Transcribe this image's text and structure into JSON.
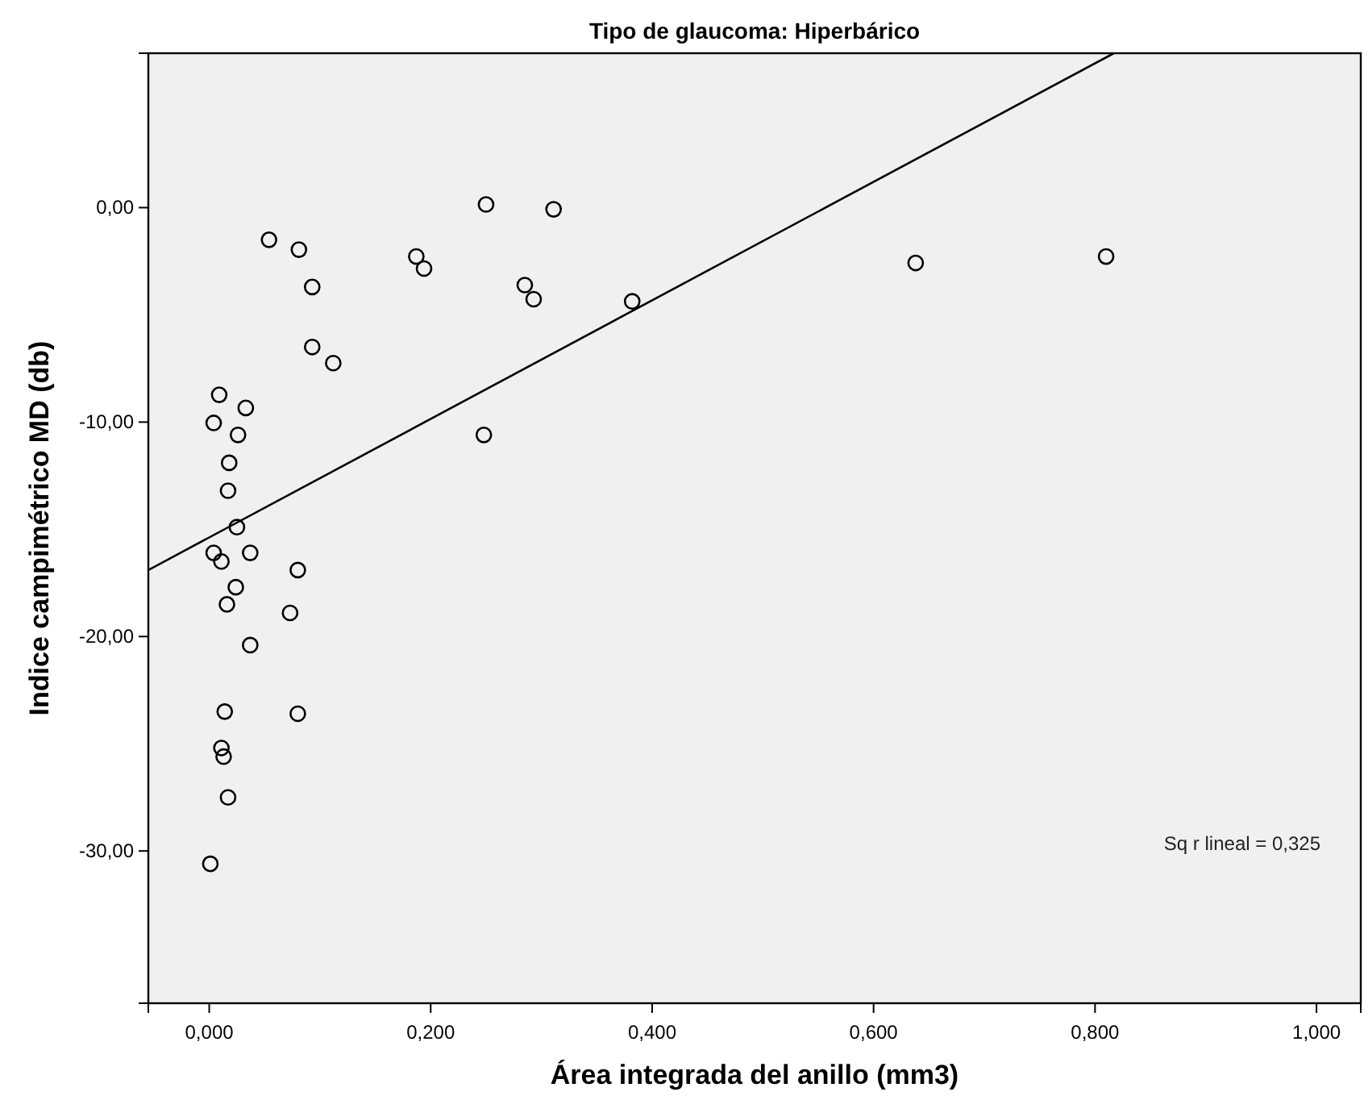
{
  "chart_data": {
    "type": "scatter",
    "title": "Tipo de glaucoma: Hiperbárico",
    "xlabel": "Área integrada del anillo (mm3)",
    "ylabel": "Indice campimétrico MD (db)",
    "xlim": [
      -0.055,
      1.04
    ],
    "ylim": [
      -37.1,
      7.2
    ],
    "xticks": [
      {
        "value": 0,
        "label": "0,000"
      },
      {
        "value": 0.2,
        "label": "0,200"
      },
      {
        "value": 0.4,
        "label": "0,400"
      },
      {
        "value": 0.6,
        "label": "0,600"
      },
      {
        "value": 0.8,
        "label": "0,800"
      },
      {
        "value": 1,
        "label": "1,000"
      }
    ],
    "yticks": [
      {
        "value": -30,
        "label": "-30,00"
      },
      {
        "value": -20,
        "label": "-20,00"
      },
      {
        "value": -10,
        "label": "-10,00"
      },
      {
        "value": 0,
        "label": "0,00"
      }
    ],
    "grid": false,
    "annotations": [
      "Sq r lineal = 0,325"
    ],
    "series": [
      {
        "marker": "circle",
        "color": "#000000",
        "x": [
          0.054,
          0.081,
          0.093,
          0.093,
          0.112,
          0.187,
          0.194,
          0.25,
          0.311,
          0.285,
          0.293,
          0.382,
          0.248,
          0.009,
          0.033,
          0.004,
          0.026,
          0.018,
          0.017,
          0.025,
          0.004,
          0.011,
          0.037,
          0.08,
          0.024,
          0.016,
          0.073,
          0.037,
          0.014,
          0.08,
          0.011,
          0.013,
          0.017,
          0.001,
          0.638,
          0.81
        ],
        "values": [
          -1.5,
          -1.96,
          -3.7,
          -6.5,
          -7.25,
          -2.28,
          -2.84,
          0.15,
          -0.08,
          -3.61,
          -4.27,
          -4.37,
          -10.6,
          -8.73,
          -9.34,
          -10.04,
          -10.6,
          -11.9,
          -13.2,
          -14.9,
          -16.1,
          -16.5,
          -16.1,
          -16.9,
          -17.7,
          -18.5,
          -18.9,
          -20.4,
          -23.5,
          -23.6,
          -25.2,
          -25.6,
          -27.5,
          -30.6,
          -2.58,
          -2.28
        ]
      },
      {
        "type": "line",
        "color": "#000000",
        "x": [
          -0.055,
          0.817
        ],
        "values": [
          -16.9,
          7.2
        ]
      }
    ]
  }
}
